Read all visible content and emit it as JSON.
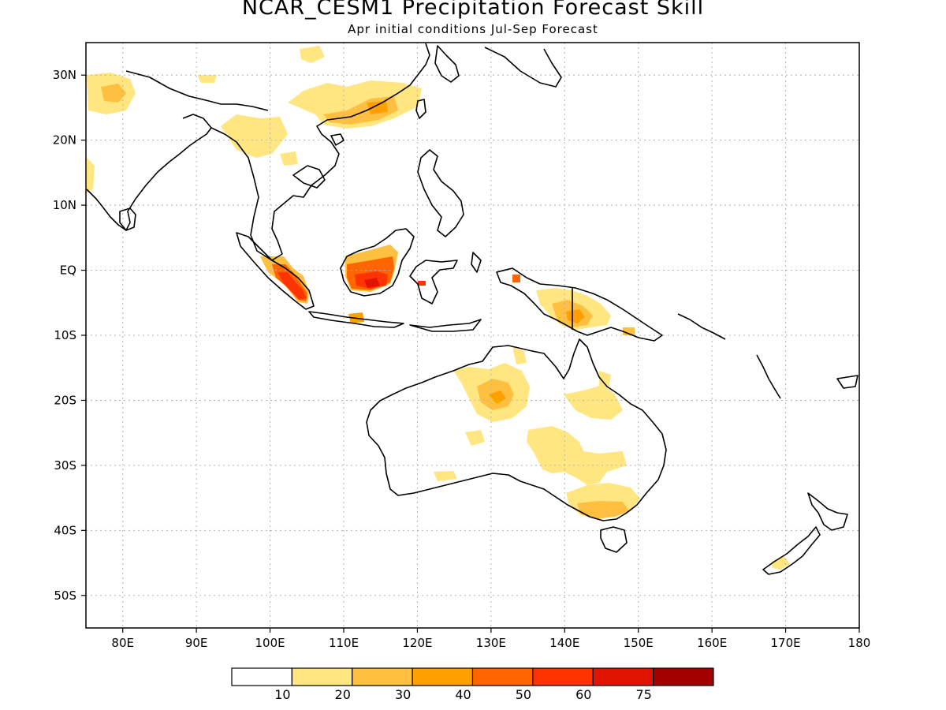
{
  "title": "NCAR_CESM1 Precipitation Forecast Skill",
  "subtitle": "Apr initial conditions  Jul-Sep Forecast",
  "map": {
    "lon_range": [
      75,
      180
    ],
    "lat_range": [
      -55,
      35
    ],
    "grid": "dotted",
    "x_ticks": [
      {
        "lon": 80,
        "label": "80E"
      },
      {
        "lon": 90,
        "label": "90E"
      },
      {
        "lon": 100,
        "label": "100E"
      },
      {
        "lon": 110,
        "label": "110E"
      },
      {
        "lon": 120,
        "label": "120E"
      },
      {
        "lon": 130,
        "label": "130E"
      },
      {
        "lon": 140,
        "label": "140E"
      },
      {
        "lon": 150,
        "label": "150E"
      },
      {
        "lon": 160,
        "label": "160E"
      },
      {
        "lon": 170,
        "label": "170E"
      },
      {
        "lon": 180,
        "label": "180"
      }
    ],
    "y_ticks": [
      {
        "lat": 30,
        "label": "30N"
      },
      {
        "lat": 20,
        "label": "20N"
      },
      {
        "lat": 10,
        "label": "10N"
      },
      {
        "lat": 0,
        "label": "EQ"
      },
      {
        "lat": -10,
        "label": "10S"
      },
      {
        "lat": -20,
        "label": "20S"
      },
      {
        "lat": -30,
        "label": "30S"
      },
      {
        "lat": -40,
        "label": "40S"
      },
      {
        "lat": -50,
        "label": "50S"
      }
    ]
  },
  "colorbar": {
    "colors": [
      "#ffffff",
      "#ffe680",
      "#ffbf40",
      "#ff9f00",
      "#ff6600",
      "#ff3300",
      "#e01400",
      "#a50000"
    ],
    "labels": [
      "10",
      "20",
      "30",
      "40",
      "50",
      "60",
      "75"
    ]
  },
  "chart_data": {
    "type": "heatmap",
    "title": "NCAR_CESM1 Precipitation Forecast Skill",
    "subtitle": "Apr initial conditions  Jul-Sep Forecast",
    "levels": [
      10,
      20,
      30,
      40,
      50,
      60,
      75
    ],
    "skill_regions": [
      {
        "lon": [
          75,
          83
        ],
        "lat": [
          26,
          32
        ],
        "level": 20
      },
      {
        "lon": [
          108,
          120
        ],
        "lat": [
          23,
          27
        ],
        "level": 20
      },
      {
        "lon": [
          112,
          117
        ],
        "lat": [
          23.5,
          26
        ],
        "level": 30
      },
      {
        "lon": [
          102,
          106
        ],
        "lat": [
          17,
          22
        ],
        "level": 10
      },
      {
        "lon": [
          100,
          105
        ],
        "lat": [
          -5,
          0
        ],
        "level": 60
      },
      {
        "lon": [
          110,
          118
        ],
        "lat": [
          -3,
          3
        ],
        "level": 50
      },
      {
        "lon": [
          112,
          116
        ],
        "lat": [
          -2,
          1
        ],
        "level": 60
      },
      {
        "lon": [
          121,
          122
        ],
        "lat": [
          -2,
          -1
        ],
        "level": 50
      },
      {
        "lon": [
          133,
          134
        ],
        "lat": [
          -1.5,
          -0.5
        ],
        "level": 50
      },
      {
        "lon": [
          136,
          146
        ],
        "lat": [
          -9,
          -3
        ],
        "level": 20
      },
      {
        "lon": [
          139,
          143
        ],
        "lat": [
          -8,
          -5
        ],
        "level": 30
      },
      {
        "lon": [
          125,
          134
        ],
        "lat": [
          -24,
          -16
        ],
        "level": 20
      },
      {
        "lon": [
          127,
          132
        ],
        "lat": [
          -22,
          -18
        ],
        "level": 30
      },
      {
        "lon": [
          139,
          151
        ],
        "lat": [
          -32,
          -25
        ],
        "level": 10
      },
      {
        "lon": [
          143,
          153
        ],
        "lat": [
          -39,
          -35
        ],
        "level": 20
      },
      {
        "lon": [
          167,
          171
        ],
        "lat": [
          -46,
          -44
        ],
        "level": 20
      }
    ]
  }
}
